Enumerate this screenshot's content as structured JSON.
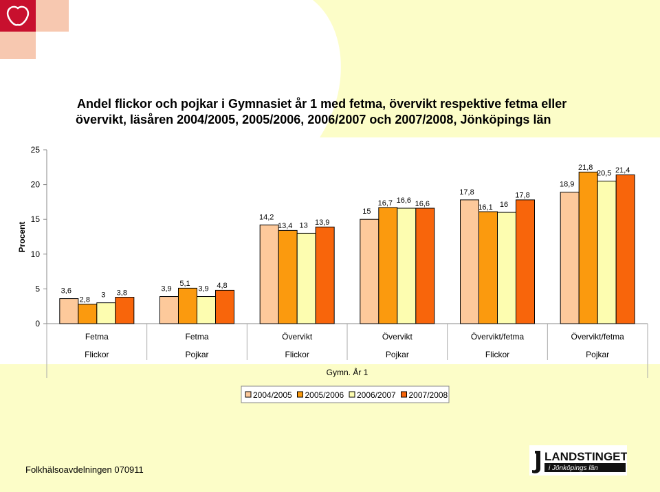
{
  "title_line1": "Andel flickor och pojkar i Gymnasiet år 1 med fetma, övervikt respektive fetma eller",
  "title_line2": "övervikt, läsåren 2004/2005, 2005/2006,  2006/2007 och 2007/2008, Jönköpings län",
  "footer": "Folkhälsoavdelningen 070911",
  "logo": {
    "text_main": "LANDSTINGET",
    "text_sub": "i Jönköpings län"
  },
  "colors": {
    "2004/2005": "#fdc99b",
    "2005/2006": "#fb9a0e",
    "2006/2007": "#fdfdb0",
    "2007/2008": "#f8650b",
    "brand_red": "#c8102e"
  },
  "chart_data": {
    "type": "bar",
    "title": "Andel flickor och pojkar i Gymnasiet år 1 med fetma, övervikt respektive fetma eller övervikt, läsåren 2004/2005, 2005/2006,  2006/2007 och 2007/2008, Jönköpings län",
    "ylabel": "Procent",
    "xlabel": "Gymn. År 1",
    "ylim": [
      0,
      25
    ],
    "yticks": [
      "0",
      "5",
      "10",
      "15",
      "20",
      "25"
    ],
    "categories": [
      {
        "measure": "Fetma",
        "group": "Flickor"
      },
      {
        "measure": "Fetma",
        "group": "Pojkar"
      },
      {
        "measure": "Övervikt",
        "group": "Flickor"
      },
      {
        "measure": "Övervikt",
        "group": "Pojkar"
      },
      {
        "measure": "Övervikt/fetma",
        "group": "Flickor"
      },
      {
        "measure": "Övervikt/fetma",
        "group": "Pojkar"
      }
    ],
    "series": [
      {
        "name": "2004/2005",
        "values": [
          3.6,
          3.9,
          14.2,
          15,
          17.8,
          18.9
        ],
        "labels": [
          "3,6",
          "3,9",
          "14,2",
          "15",
          "17,8",
          "18,9"
        ]
      },
      {
        "name": "2005/2006",
        "values": [
          2.8,
          5.1,
          13.4,
          16.7,
          16.1,
          21.8
        ],
        "labels": [
          "2,8",
          "5,1",
          "13,4",
          "16,7",
          "16,1",
          "21,8"
        ]
      },
      {
        "name": "2006/2007",
        "values": [
          3,
          3.9,
          13,
          16.6,
          16,
          20.5
        ],
        "labels": [
          "3",
          "3,9",
          "13",
          "16,6",
          "16",
          "20,5"
        ]
      },
      {
        "name": "2007/2008",
        "values": [
          3.8,
          4.8,
          13.9,
          16.6,
          17.8,
          21.4
        ],
        "labels": [
          "3,8",
          "4,8",
          "13,9",
          "16,6",
          "17,8",
          "21,4"
        ]
      }
    ],
    "grid": false,
    "legend": "bottom-center"
  }
}
